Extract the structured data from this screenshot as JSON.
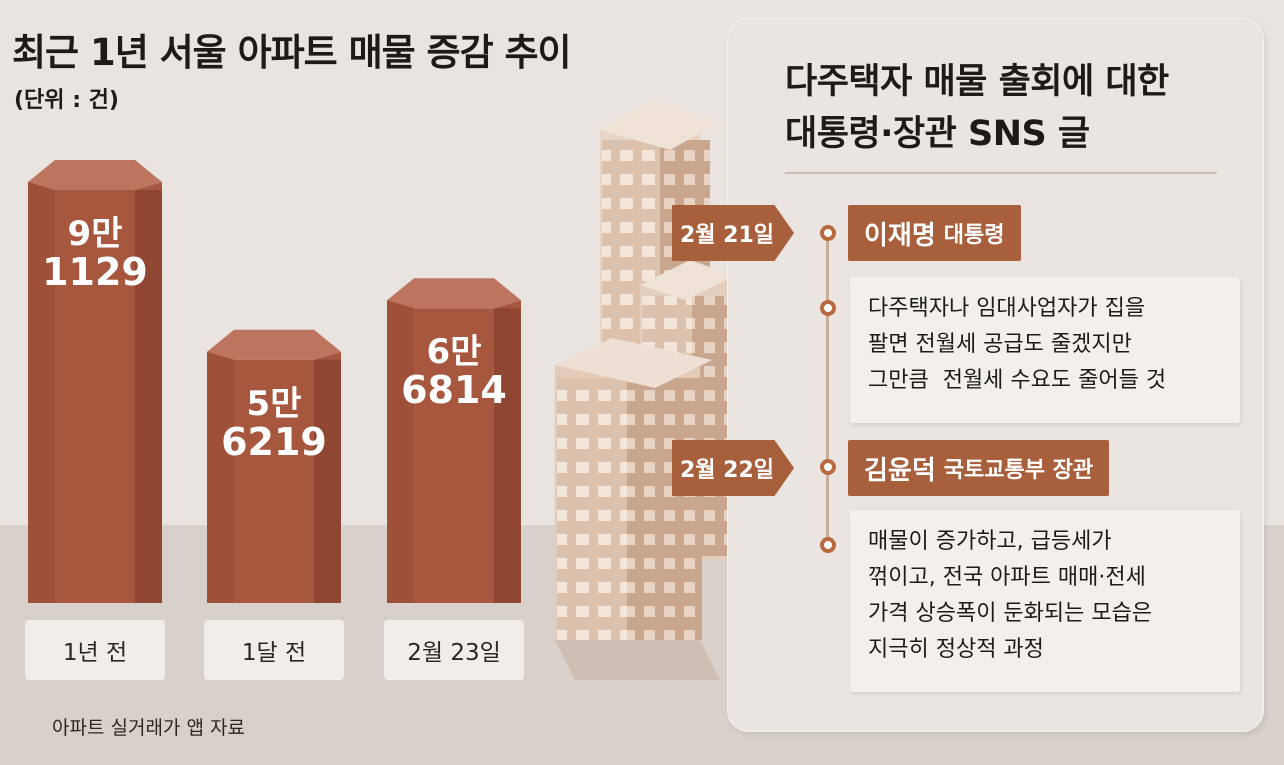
{
  "chart_data": {
    "type": "bar",
    "title": "최근 1년 서울 아파트 매물 증감 추이",
    "unit": "(단위 : 건)",
    "categories": [
      "1년 전",
      "1달 전",
      "2월 23일"
    ],
    "values": [
      91129,
      56219,
      66814
    ],
    "value_labels": [
      {
        "line1": "9만",
        "line2": "1129"
      },
      {
        "line1": "5만",
        "line2": "6219"
      },
      {
        "line1": "6만",
        "line2": "6814"
      }
    ],
    "source": "아파트 실거래가 앱 자료",
    "colors": {
      "bar": "#a8573f",
      "bar_top": "#bd7560",
      "bar_side": "#8f4733"
    }
  },
  "panel": {
    "title_line1": "다주택자 매물 출회에 대한",
    "title_line2": "대통령·장관 SNS 글",
    "events": [
      {
        "date": "2월 21일",
        "name": "이재명",
        "role": "대통령",
        "quote": [
          "다주택자나 임대사업자가 집을",
          "팔면 전월세 공급도 줄겠지만",
          "그만큼  전월세 수요도 줄어들 것"
        ]
      },
      {
        "date": "2월 22일",
        "name": "김윤덕",
        "role": "국토교통부 장관",
        "quote": [
          "매물이 증가하고, 급등세가",
          "꺾이고, 전국 아파트 매매·전세",
          "가격 상승폭이 둔화되는 모습은",
          "지극히 정상적 과정"
        ]
      }
    ],
    "accent": "#a85f3c"
  }
}
